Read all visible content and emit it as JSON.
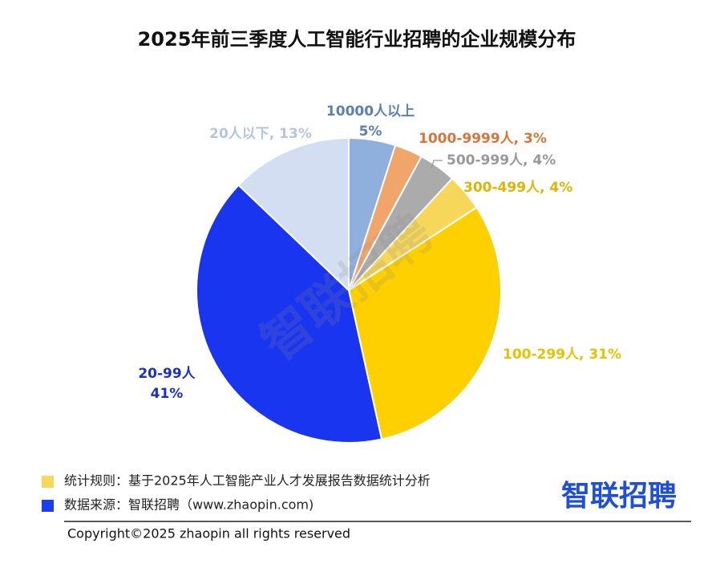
{
  "chart_data": {
    "type": "pie",
    "title": "2025年前三季度人工智能行业招聘的企业规模分布",
    "values": [
      5,
      3,
      4,
      4,
      31,
      41,
      13
    ],
    "labels": [
      [
        "10000人以上",
        "5%"
      ],
      [
        "1000-9999人, 3%"
      ],
      [
        "500-999人, 4%"
      ],
      [
        "300-499人, 4%"
      ],
      [
        "100-299人, 31%"
      ],
      [
        "20-99人",
        "41%"
      ],
      [
        "20人以下, 13%"
      ]
    ],
    "colors": [
      "#8fb0dc",
      "#f0a56a",
      "#ababab",
      "#f7d75a",
      "#ffd000",
      "#1a35f0",
      "#d3def3"
    ],
    "label_colors": [
      "#5b7fb5",
      "#d9743a",
      "#999999",
      "#e0b400",
      "#e8c200",
      "#1a2fcc",
      "#b4c4e2"
    ]
  },
  "watermark": "智联招聘",
  "notes": [
    {
      "text": "统计规则：基于2025年人工智能产业人才发展报告数据统计分析",
      "color": "#f9d65c"
    },
    {
      "text": "数据来源：智联招聘（www.zhaopin.com)",
      "color": "#1a3ef0"
    }
  ],
  "logo": "智联招聘",
  "copyright": "Copyright©2025 zhaopin all rights reserved"
}
